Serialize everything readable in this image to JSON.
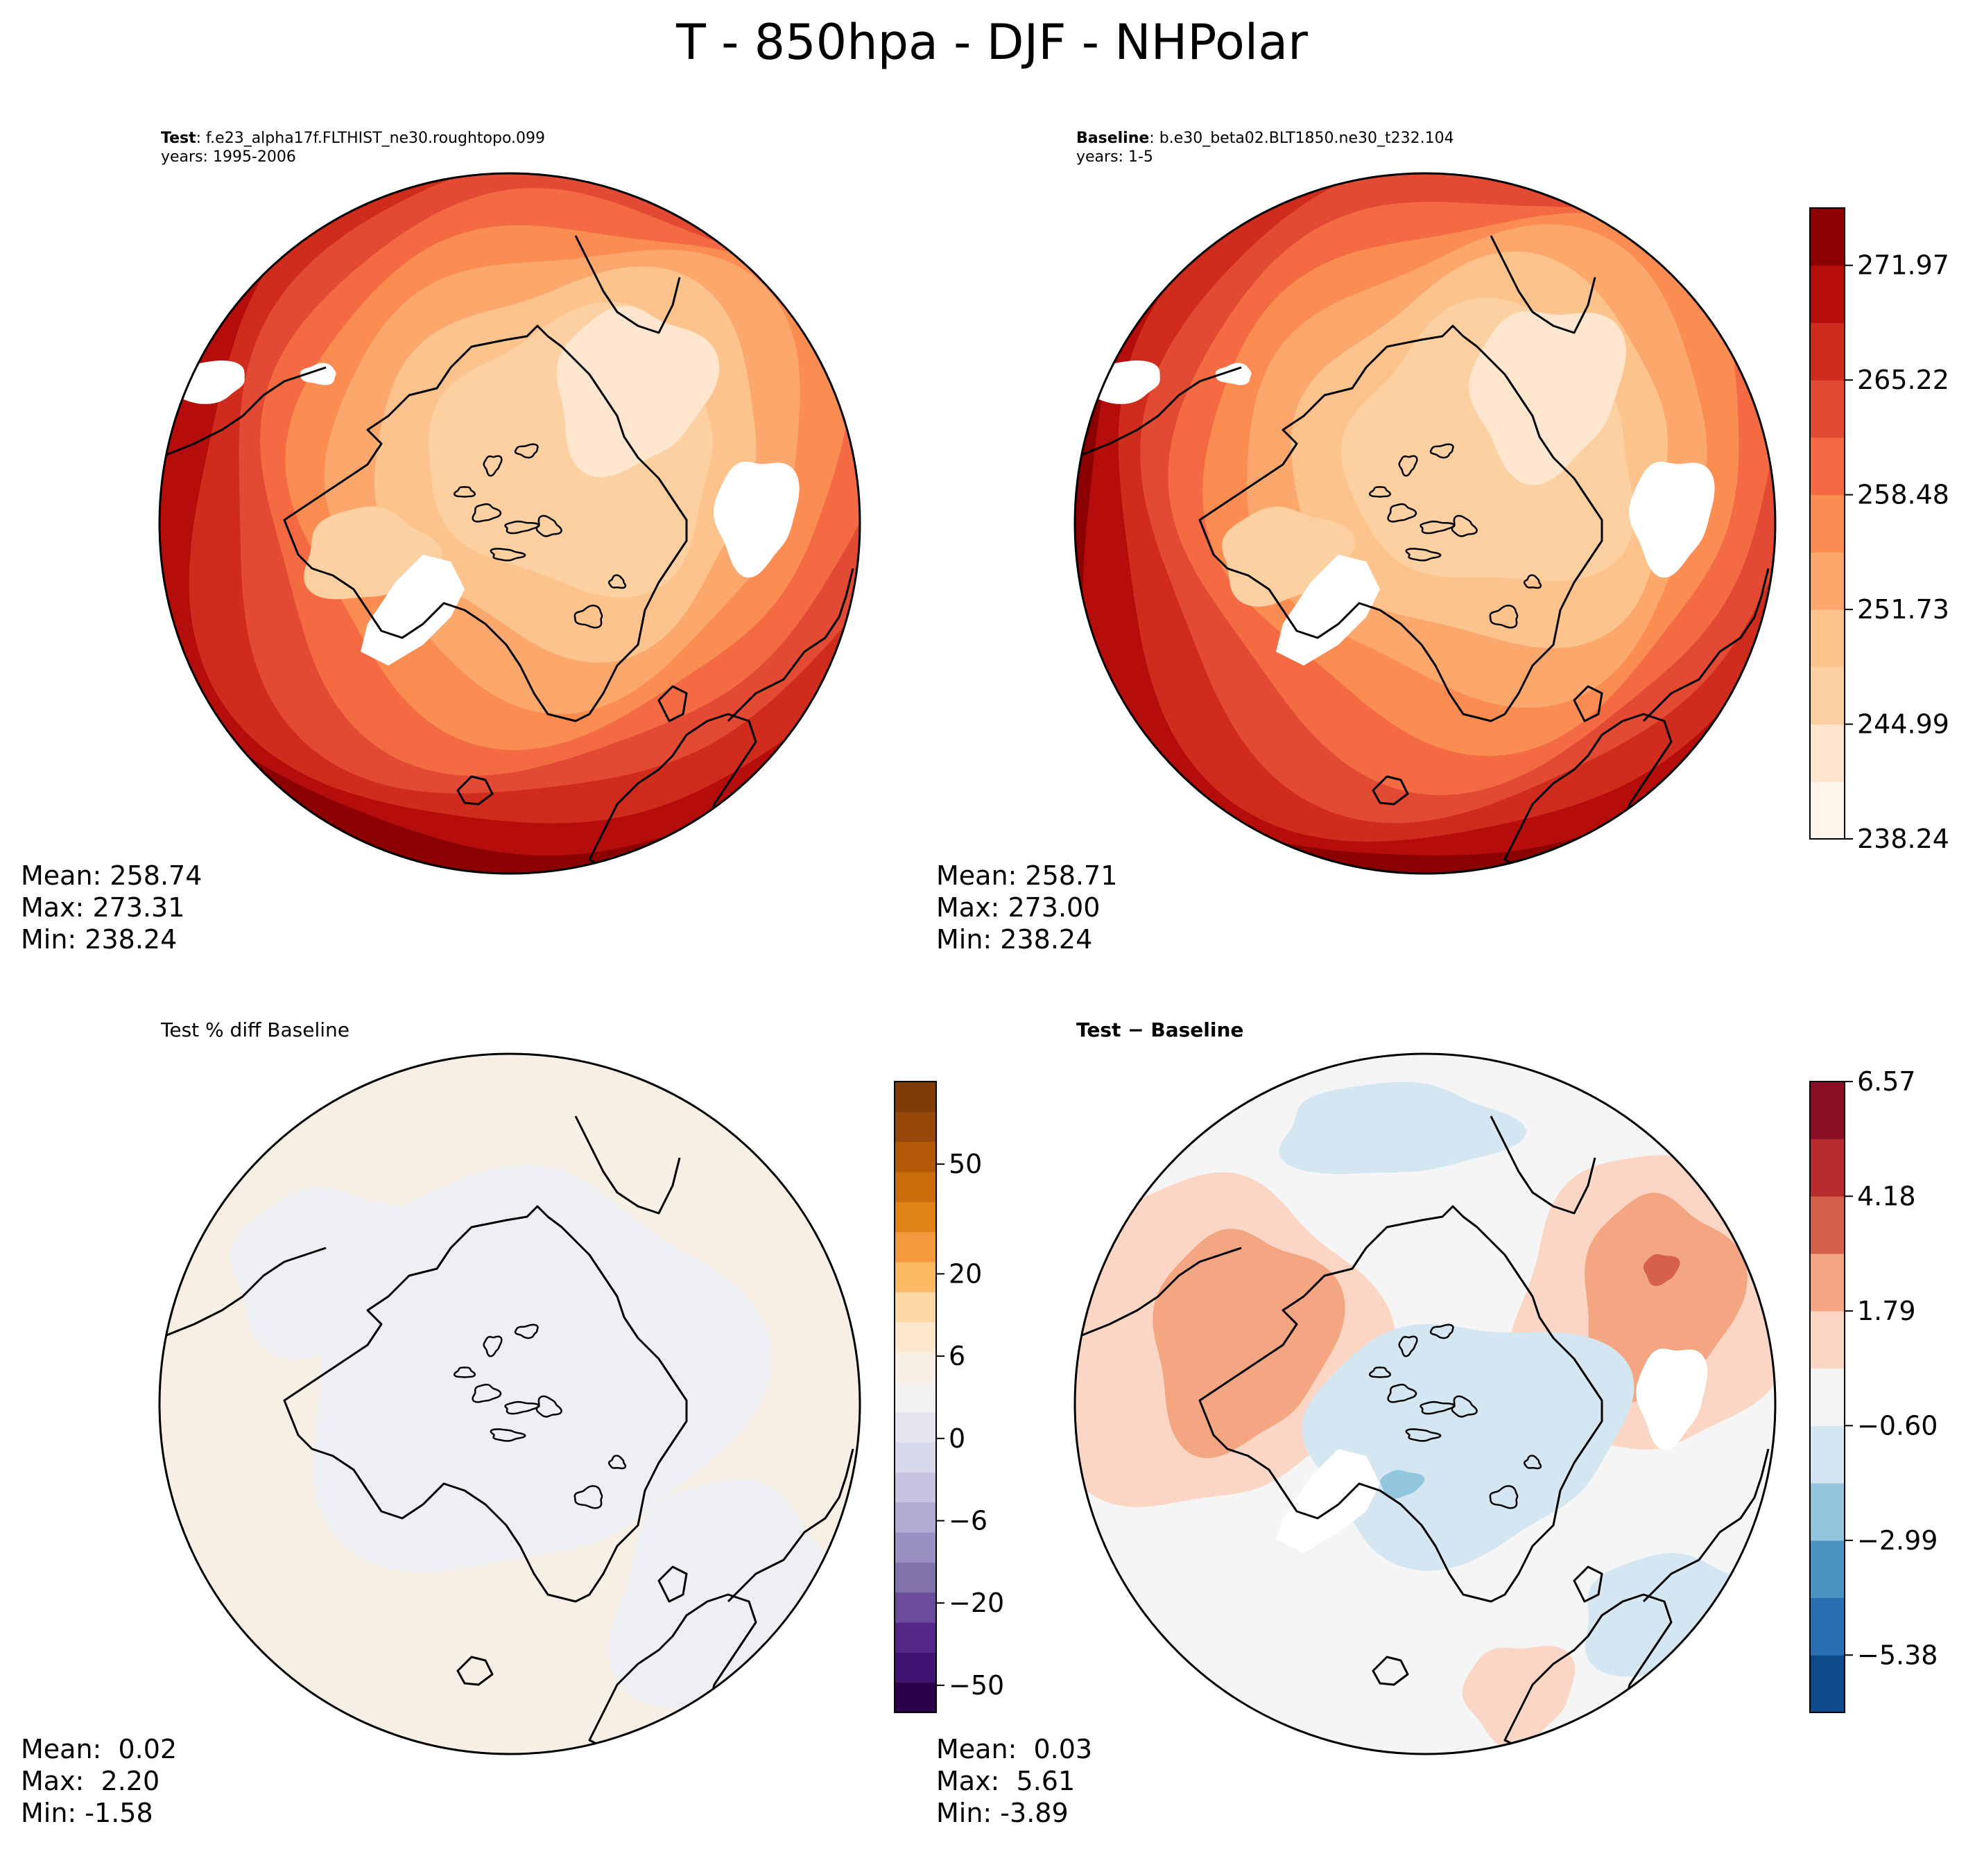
{
  "figure_title": "T - 850hpa - DJF - NHPolar",
  "colors": {
    "outline": "#000000",
    "missing": "#ffffff"
  },
  "chart_data": [
    {
      "type": "contourf-map",
      "panel": "test",
      "projection": "north-polar-stereographic",
      "title_bold": "Test",
      "title_rest": ": f.e23_alpha17f.FLTHIST_ne30.roughtopo.099",
      "years_line": "years: 1995-2006",
      "stats": {
        "mean_label": "Mean: 258.74",
        "max_label": "Max: 273.31",
        "min_label": "Min: 238.24"
      },
      "colormap": "OrRd-like"
    },
    {
      "type": "contourf-map",
      "panel": "baseline",
      "projection": "north-polar-stereographic",
      "title_bold": "Baseline",
      "title_rest": ": b.e30_beta02.BLT1850.ne30_t232.104",
      "years_line": "years: 1-5",
      "stats": {
        "mean_label": "Mean: 258.71",
        "max_label": "Max: 273.00",
        "min_label": "Min: 238.24"
      },
      "colorbar": {
        "levels": [
          238.24,
          241.61,
          244.99,
          248.36,
          251.73,
          255.11,
          258.48,
          261.85,
          265.22,
          268.6,
          271.97,
          275.34
        ],
        "tick_labels": [
          "238.24",
          "244.99",
          "251.73",
          "258.48",
          "265.22",
          "271.97"
        ],
        "colors": [
          "#fff5eb",
          "#fee6ce",
          "#fdd0a2",
          "#fdc38c",
          "#fca86c",
          "#fb8d53",
          "#f46b43",
          "#e34a33",
          "#cf2c1d",
          "#b50d0b",
          "#8b0000"
        ]
      }
    },
    {
      "type": "contourf-map",
      "panel": "percent-diff",
      "projection": "north-polar-stereographic",
      "title": "Test % diff Baseline",
      "stats": {
        "mean_label": "Mean:  0.02",
        "max_label": "Max:  2.20",
        "min_label": "Min: -1.58"
      },
      "colorbar": {
        "tick_labels": [
          "50",
          "20",
          "6",
          "0",
          "−6",
          "−20",
          "−50"
        ],
        "colors": [
          "#2d004b",
          "#3f1370",
          "#542788",
          "#6a4c9a",
          "#8073ac",
          "#998fc0",
          "#b2abd2",
          "#c8c3e0",
          "#d8daeb",
          "#e7e6f0",
          "#f3f1f1",
          "#f7efe4",
          "#fde8cd",
          "#fdd8a5",
          "#fdb863",
          "#f49a3c",
          "#e08214",
          "#c96c0c",
          "#b35806",
          "#96470a",
          "#7f3b08"
        ]
      }
    },
    {
      "type": "contourf-map",
      "panel": "difference",
      "projection": "north-polar-stereographic",
      "title_bold": "Test − Baseline",
      "stats": {
        "mean_label": "Mean:  0.03",
        "max_label": "Max:  5.61",
        "min_label": "Min: -3.89"
      },
      "colorbar": {
        "levels": [
          -6.57,
          -5.38,
          -4.18,
          -2.99,
          -1.79,
          -0.6,
          0.6,
          1.79,
          2.99,
          4.18,
          5.38,
          6.57
        ],
        "tick_labels": [
          "6.57",
          "4.18",
          "1.79",
          "−0.60",
          "−2.99",
          "−5.38"
        ],
        "colors": [
          "#0c4a8a",
          "#2b6fb2",
          "#4c92c3",
          "#92c5de",
          "#d4e6f1",
          "#f5f5f5",
          "#fbd6c4",
          "#f4a582",
          "#d6604d",
          "#b72a2e",
          "#8a0e26"
        ]
      }
    }
  ]
}
